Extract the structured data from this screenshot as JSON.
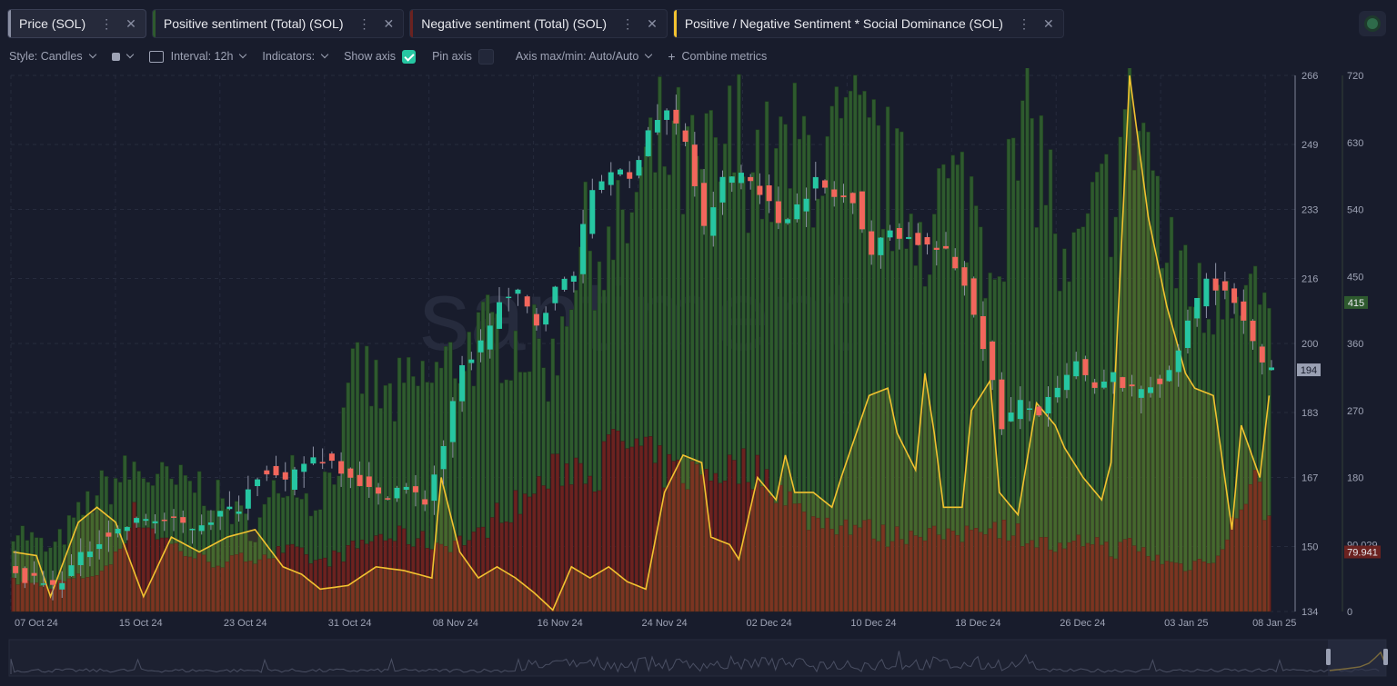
{
  "tabs": [
    {
      "label": "Price (SOL)",
      "color": "#8a8fa3",
      "active": true
    },
    {
      "label": "Positive sentiment (Total) (SOL)",
      "color": "#2e5a2e"
    },
    {
      "label": "Negative sentiment (Total) (SOL)",
      "color": "#6b2220"
    },
    {
      "label": "Positive / Negative Sentiment * Social Dominance (SOL)",
      "color": "#f2c230"
    }
  ],
  "toolbar": {
    "style": "Style: Candles",
    "interval": "Interval: 12h",
    "indicators": "Indicators:",
    "show_axis": "Show axis",
    "pin_axis": "Pin axis",
    "axis_maxmin": "Axis max/min: Auto/Auto",
    "combine": "Combine metrics"
  },
  "watermark": "santiment",
  "chart_data": {
    "type": "candlestick+bar+line",
    "x_labels": [
      "07 Oct 24",
      "15 Oct 24",
      "23 Oct 24",
      "31 Oct 24",
      "08 Nov 24",
      "16 Nov 24",
      "24 Nov 24",
      "02 Dec 24",
      "10 Dec 24",
      "18 Dec 24",
      "26 Dec 24",
      "03 Jan 25",
      "08 Jan 25"
    ],
    "price_axis": {
      "ticks": [
        134,
        150,
        167,
        183,
        200,
        216,
        233,
        249,
        266
      ],
      "range": [
        134,
        266
      ],
      "current": "194"
    },
    "sentiment_axis": {
      "ticks": [
        "0",
        "90.029",
        "180",
        "270",
        "360",
        "450",
        "540",
        "630",
        "720"
      ],
      "range": [
        0,
        720
      ],
      "badges": [
        "415",
        "79.941"
      ]
    },
    "colors": {
      "up": "#26c6a2",
      "down": "#f2665c",
      "positive": "#2e5a2e",
      "negative": "#6b2220",
      "ratio": "#f2c230"
    },
    "price_keypoints": [
      [
        0,
        144
      ],
      [
        10,
        140
      ],
      [
        20,
        152
      ],
      [
        30,
        157
      ],
      [
        40,
        155
      ],
      [
        50,
        160
      ],
      [
        55,
        170
      ],
      [
        60,
        165
      ],
      [
        65,
        172
      ],
      [
        70,
        171
      ],
      [
        75,
        167
      ],
      [
        80,
        162
      ],
      [
        85,
        165
      ],
      [
        90,
        161
      ],
      [
        94,
        175
      ],
      [
        98,
        194
      ],
      [
        102,
        200
      ],
      [
        106,
        210
      ],
      [
        110,
        212
      ],
      [
        114,
        205
      ],
      [
        118,
        213
      ],
      [
        122,
        218
      ],
      [
        126,
        238
      ],
      [
        130,
        243
      ],
      [
        134,
        240
      ],
      [
        138,
        253
      ],
      [
        142,
        257
      ],
      [
        146,
        250
      ],
      [
        150,
        228
      ],
      [
        154,
        240
      ],
      [
        158,
        242
      ],
      [
        162,
        238
      ],
      [
        166,
        230
      ],
      [
        170,
        234
      ],
      [
        174,
        240
      ],
      [
        178,
        236
      ],
      [
        182,
        236
      ],
      [
        186,
        222
      ],
      [
        190,
        228
      ],
      [
        194,
        226
      ],
      [
        198,
        224
      ],
      [
        202,
        222
      ],
      [
        206,
        215
      ],
      [
        210,
        200
      ],
      [
        214,
        180
      ],
      [
        218,
        185
      ],
      [
        222,
        183
      ],
      [
        226,
        188
      ],
      [
        230,
        195
      ],
      [
        234,
        188
      ],
      [
        238,
        192
      ],
      [
        242,
        188
      ],
      [
        246,
        190
      ],
      [
        250,
        192
      ],
      [
        254,
        205
      ],
      [
        258,
        216
      ],
      [
        262,
        213
      ],
      [
        266,
        205
      ],
      [
        270,
        194
      ]
    ],
    "positive_keypoints": [
      [
        0,
        115
      ],
      [
        8,
        80
      ],
      [
        18,
        160
      ],
      [
        26,
        190
      ],
      [
        34,
        170
      ],
      [
        40,
        170
      ],
      [
        46,
        140
      ],
      [
        52,
        110
      ],
      [
        60,
        200
      ],
      [
        64,
        140
      ],
      [
        70,
        210
      ],
      [
        74,
        330
      ],
      [
        80,
        280
      ],
      [
        86,
        300
      ],
      [
        92,
        320
      ],
      [
        98,
        355
      ],
      [
        104,
        370
      ],
      [
        110,
        360
      ],
      [
        116,
        330
      ],
      [
        120,
        460
      ],
      [
        124,
        500
      ],
      [
        128,
        470
      ],
      [
        134,
        550
      ],
      [
        140,
        630
      ],
      [
        146,
        580
      ],
      [
        152,
        600
      ],
      [
        156,
        635
      ],
      [
        162,
        590
      ],
      [
        166,
        600
      ],
      [
        170,
        620
      ],
      [
        176,
        610
      ],
      [
        180,
        630
      ],
      [
        186,
        605
      ],
      [
        190,
        560
      ],
      [
        196,
        520
      ],
      [
        200,
        560
      ],
      [
        206,
        555
      ],
      [
        210,
        480
      ],
      [
        214,
        560
      ],
      [
        218,
        640
      ],
      [
        222,
        600
      ],
      [
        226,
        430
      ],
      [
        232,
        510
      ],
      [
        236,
        570
      ],
      [
        240,
        670
      ],
      [
        244,
        640
      ],
      [
        248,
        450
      ],
      [
        252,
        480
      ],
      [
        256,
        390
      ],
      [
        260,
        460
      ],
      [
        264,
        460
      ],
      [
        270,
        390
      ]
    ],
    "negative_keypoints": [
      [
        0,
        40
      ],
      [
        8,
        35
      ],
      [
        20,
        55
      ],
      [
        26,
        130
      ],
      [
        34,
        90
      ],
      [
        40,
        70
      ],
      [
        46,
        65
      ],
      [
        52,
        75
      ],
      [
        60,
        80
      ],
      [
        66,
        65
      ],
      [
        72,
        80
      ],
      [
        78,
        100
      ],
      [
        84,
        100
      ],
      [
        92,
        90
      ],
      [
        100,
        100
      ],
      [
        104,
        130
      ],
      [
        110,
        150
      ],
      [
        116,
        185
      ],
      [
        122,
        200
      ],
      [
        126,
        185
      ],
      [
        128,
        220
      ],
      [
        132,
        225
      ],
      [
        136,
        210
      ],
      [
        140,
        190
      ],
      [
        146,
        185
      ],
      [
        152,
        190
      ],
      [
        158,
        195
      ],
      [
        162,
        180
      ],
      [
        166,
        160
      ],
      [
        170,
        125
      ],
      [
        176,
        120
      ],
      [
        182,
        115
      ],
      [
        188,
        100
      ],
      [
        196,
        110
      ],
      [
        202,
        95
      ],
      [
        208,
        120
      ],
      [
        214,
        110
      ],
      [
        220,
        95
      ],
      [
        226,
        80
      ],
      [
        232,
        100
      ],
      [
        236,
        80
      ],
      [
        240,
        90
      ],
      [
        246,
        70
      ],
      [
        252,
        60
      ],
      [
        256,
        70
      ],
      [
        260,
        80
      ],
      [
        264,
        150
      ],
      [
        267,
        175
      ],
      [
        270,
        120
      ]
    ],
    "ratio_keypoints": [
      [
        0,
        80
      ],
      [
        5,
        75
      ],
      [
        8,
        20
      ],
      [
        14,
        120
      ],
      [
        18,
        140
      ],
      [
        22,
        120
      ],
      [
        28,
        20
      ],
      [
        34,
        100
      ],
      [
        40,
        80
      ],
      [
        46,
        100
      ],
      [
        52,
        110
      ],
      [
        58,
        60
      ],
      [
        62,
        50
      ],
      [
        66,
        30
      ],
      [
        72,
        35
      ],
      [
        78,
        60
      ],
      [
        84,
        55
      ],
      [
        90,
        45
      ],
      [
        92,
        180
      ],
      [
        96,
        80
      ],
      [
        100,
        45
      ],
      [
        104,
        60
      ],
      [
        108,
        45
      ],
      [
        112,
        25
      ],
      [
        116,
        2
      ],
      [
        120,
        60
      ],
      [
        124,
        45
      ],
      [
        128,
        60
      ],
      [
        132,
        40
      ],
      [
        136,
        30
      ],
      [
        140,
        160
      ],
      [
        144,
        210
      ],
      [
        148,
        200
      ],
      [
        150,
        100
      ],
      [
        154,
        90
      ],
      [
        156,
        70
      ],
      [
        160,
        180
      ],
      [
        164,
        150
      ],
      [
        166,
        210
      ],
      [
        168,
        160
      ],
      [
        172,
        160
      ],
      [
        176,
        140
      ],
      [
        178,
        180
      ],
      [
        184,
        290
      ],
      [
        188,
        300
      ],
      [
        190,
        240
      ],
      [
        194,
        190
      ],
      [
        196,
        320
      ],
      [
        198,
        240
      ],
      [
        200,
        140
      ],
      [
        204,
        140
      ],
      [
        206,
        270
      ],
      [
        210,
        310
      ],
      [
        212,
        160
      ],
      [
        216,
        130
      ],
      [
        220,
        280
      ],
      [
        224,
        250
      ],
      [
        226,
        220
      ],
      [
        230,
        180
      ],
      [
        234,
        150
      ],
      [
        236,
        200
      ],
      [
        240,
        720
      ],
      [
        244,
        530
      ],
      [
        248,
        410
      ],
      [
        252,
        320
      ],
      [
        254,
        300
      ],
      [
        258,
        290
      ],
      [
        262,
        110
      ],
      [
        264,
        250
      ],
      [
        268,
        180
      ],
      [
        270,
        290
      ]
    ]
  }
}
